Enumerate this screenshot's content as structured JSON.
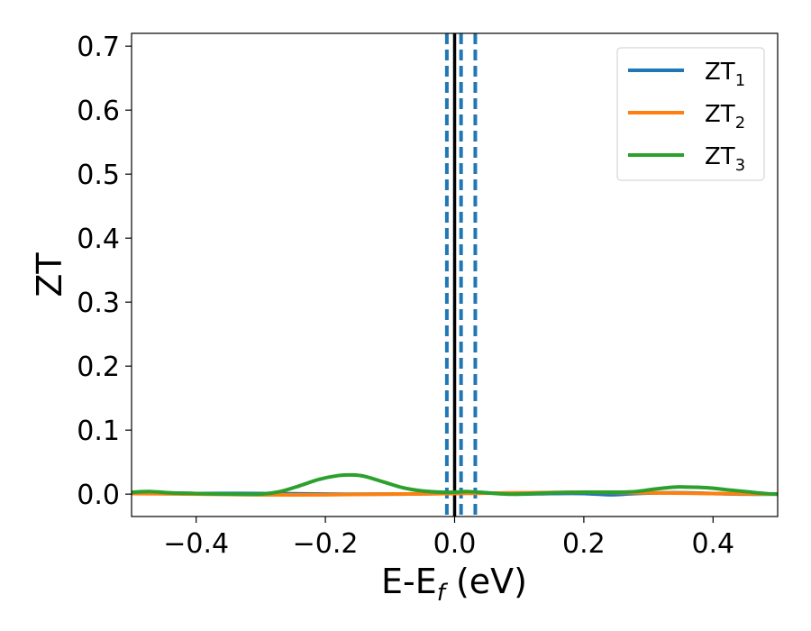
{
  "chart_data": {
    "type": "line",
    "xlabel": "E-E",
    "xlabel_sub": "f",
    "xlabel_unit": " (eV)",
    "ylabel": "ZT",
    "xlim": [
      -0.5,
      0.5
    ],
    "ylim": [
      -0.035,
      0.72
    ],
    "xticks": [
      -0.4,
      -0.2,
      0.0,
      0.2,
      0.4
    ],
    "xtick_labels": [
      "−0.4",
      "−0.2",
      "0.0",
      "0.2",
      "0.4"
    ],
    "yticks": [
      0.0,
      0.1,
      0.2,
      0.3,
      0.4,
      0.5,
      0.6,
      0.7
    ],
    "ytick_labels": [
      "0.0",
      "0.1",
      "0.2",
      "0.3",
      "0.4",
      "0.5",
      "0.6",
      "0.7"
    ],
    "grid": false,
    "legend_position": "top-right",
    "vlines": [
      {
        "x": 0.0,
        "color": "#000000",
        "style": "solid"
      },
      {
        "x": -0.012,
        "color": "#1f77b4",
        "style": "dashed"
      },
      {
        "x": 0.01,
        "color": "#1f77b4",
        "style": "dashed"
      },
      {
        "x": 0.032,
        "color": "#1f77b4",
        "style": "dashed"
      }
    ],
    "series": [
      {
        "name": "ZT",
        "sub": "1",
        "color": "#1f77b4",
        "x": [
          -0.5,
          -0.45,
          -0.4,
          -0.3,
          -0.2,
          -0.1,
          -0.02,
          0.0,
          0.02,
          0.05,
          0.1,
          0.15,
          0.2,
          0.24,
          0.28,
          0.32,
          0.36,
          0.4,
          0.45,
          0.5
        ],
        "y": [
          0.002,
          0.002,
          0.001,
          0.001,
          0.0,
          0.0,
          0.001,
          0.001,
          0.002,
          0.002,
          0.0,
          0.001,
          0.001,
          -0.001,
          0.001,
          0.002,
          0.002,
          0.001,
          0.0,
          0.0
        ]
      },
      {
        "name": "ZT",
        "sub": "2",
        "color": "#ff7f0e",
        "x": [
          -0.5,
          -0.4,
          -0.3,
          -0.2,
          -0.1,
          0.0,
          0.1,
          0.2,
          0.3,
          0.4,
          0.5
        ],
        "y": [
          0.001,
          0.0,
          -0.001,
          -0.001,
          0.0,
          0.001,
          0.002,
          0.003,
          0.002,
          0.001,
          0.0
        ]
      },
      {
        "name": "ZT",
        "sub": "3",
        "color": "#2ca02c",
        "x": [
          -0.5,
          -0.47,
          -0.44,
          -0.4,
          -0.35,
          -0.3,
          -0.27,
          -0.24,
          -0.21,
          -0.18,
          -0.16,
          -0.14,
          -0.11,
          -0.08,
          -0.05,
          -0.02,
          0.0,
          0.02,
          0.05,
          0.08,
          0.1,
          0.15,
          0.2,
          0.25,
          0.28,
          0.31,
          0.34,
          0.36,
          0.39,
          0.42,
          0.45,
          0.48,
          0.5
        ],
        "y": [
          0.003,
          0.004,
          0.002,
          0.001,
          0.0,
          0.0,
          0.004,
          0.013,
          0.023,
          0.029,
          0.03,
          0.028,
          0.019,
          0.01,
          0.005,
          0.003,
          0.003,
          0.004,
          0.002,
          0.0,
          0.0,
          0.002,
          0.003,
          0.003,
          0.004,
          0.008,
          0.011,
          0.011,
          0.01,
          0.007,
          0.004,
          0.001,
          0.0
        ]
      }
    ]
  }
}
